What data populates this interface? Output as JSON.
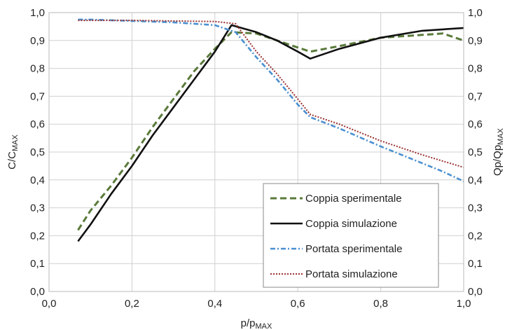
{
  "chart_data": {
    "type": "line",
    "title": "",
    "xlabel": {
      "main": "p/p",
      "sub": "MAX"
    },
    "ylabel_left": {
      "main": "C/C",
      "sub": "MAX"
    },
    "ylabel_right": {
      "main": "Qp/Qp",
      "sub": "MAX"
    },
    "xlim": [
      0,
      1
    ],
    "ylim": [
      0,
      1
    ],
    "xticks": [
      "0,0",
      "0,2",
      "0,4",
      "0,6",
      "0,8",
      "1,0"
    ],
    "yticks": [
      "0,0",
      "0,1",
      "0,2",
      "0,3",
      "0,4",
      "0,5",
      "0,6",
      "0,7",
      "0,8",
      "0,9",
      "1,0"
    ],
    "xtick_values": [
      0,
      0.2,
      0.4,
      0.6,
      0.8,
      1.0
    ],
    "ytick_values": [
      0,
      0.1,
      0.2,
      0.3,
      0.4,
      0.5,
      0.6,
      0.7,
      0.8,
      0.9,
      1.0
    ],
    "grid": true,
    "legend_position": "bottom-right",
    "series": [
      {
        "name": "Coppia sperimentale",
        "color": "#5a7a3a",
        "style": "dashed",
        "points": [
          [
            0.07,
            0.22
          ],
          [
            0.1,
            0.29
          ],
          [
            0.15,
            0.38
          ],
          [
            0.2,
            0.48
          ],
          [
            0.25,
            0.59
          ],
          [
            0.3,
            0.69
          ],
          [
            0.35,
            0.79
          ],
          [
            0.4,
            0.87
          ],
          [
            0.44,
            0.93
          ],
          [
            0.5,
            0.925
          ],
          [
            0.55,
            0.9
          ],
          [
            0.6,
            0.875
          ],
          [
            0.63,
            0.86
          ],
          [
            0.7,
            0.88
          ],
          [
            0.8,
            0.91
          ],
          [
            0.9,
            0.92
          ],
          [
            0.95,
            0.925
          ],
          [
            1.0,
            0.9
          ]
        ]
      },
      {
        "name": "Coppia simulazione",
        "color": "#111111",
        "style": "solid",
        "points": [
          [
            0.07,
            0.18
          ],
          [
            0.1,
            0.24
          ],
          [
            0.15,
            0.35
          ],
          [
            0.2,
            0.45
          ],
          [
            0.25,
            0.56
          ],
          [
            0.3,
            0.66
          ],
          [
            0.35,
            0.76
          ],
          [
            0.4,
            0.86
          ],
          [
            0.44,
            0.955
          ],
          [
            0.5,
            0.93
          ],
          [
            0.55,
            0.9
          ],
          [
            0.6,
            0.86
          ],
          [
            0.63,
            0.835
          ],
          [
            0.7,
            0.87
          ],
          [
            0.8,
            0.91
          ],
          [
            0.9,
            0.935
          ],
          [
            1.0,
            0.945
          ]
        ]
      },
      {
        "name": "Portata sperimentale",
        "color": "#4a90d0",
        "style": "dashdot",
        "points": [
          [
            0.07,
            0.975
          ],
          [
            0.1,
            0.975
          ],
          [
            0.2,
            0.97
          ],
          [
            0.3,
            0.965
          ],
          [
            0.4,
            0.955
          ],
          [
            0.45,
            0.93
          ],
          [
            0.5,
            0.84
          ],
          [
            0.55,
            0.76
          ],
          [
            0.6,
            0.67
          ],
          [
            0.63,
            0.625
          ],
          [
            0.7,
            0.585
          ],
          [
            0.8,
            0.52
          ],
          [
            0.9,
            0.46
          ],
          [
            0.95,
            0.43
          ],
          [
            1.0,
            0.395
          ]
        ]
      },
      {
        "name": "Portata simulazione",
        "color": "#9a3030",
        "style": "dotted",
        "points": [
          [
            0.07,
            0.972
          ],
          [
            0.1,
            0.972
          ],
          [
            0.2,
            0.972
          ],
          [
            0.3,
            0.97
          ],
          [
            0.4,
            0.968
          ],
          [
            0.45,
            0.96
          ],
          [
            0.5,
            0.86
          ],
          [
            0.55,
            0.78
          ],
          [
            0.6,
            0.69
          ],
          [
            0.63,
            0.635
          ],
          [
            0.7,
            0.6
          ],
          [
            0.8,
            0.54
          ],
          [
            0.9,
            0.49
          ],
          [
            1.0,
            0.445
          ]
        ]
      }
    ]
  }
}
